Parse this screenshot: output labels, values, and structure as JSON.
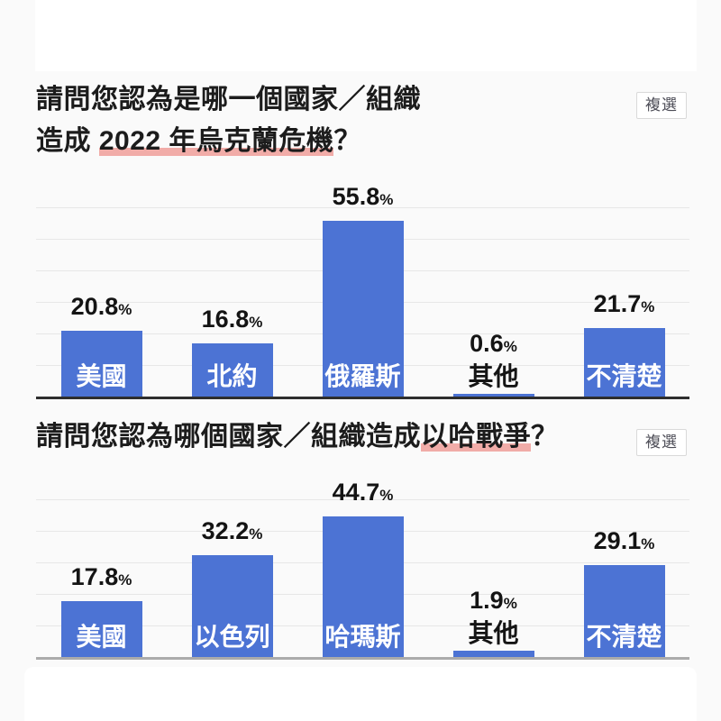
{
  "badge_label": "複選",
  "colors": {
    "bar": "#4C73D4",
    "underline": "#F1ACA8",
    "axis_chart1": "#2E2E2E",
    "axis_chart2": "#ABABAB",
    "background": "#FAFAFA",
    "card": "#FFFFFF",
    "gridline": "#E7E7E7"
  },
  "chart_data": [
    {
      "type": "bar",
      "title_line1": "請問您認為是哪一個國家／組織",
      "title_line2_prefix": "造成 ",
      "title_line2_underlined": "2022 年烏克蘭危機",
      "title_line2_suffix": "？",
      "badge": "複選",
      "categories": [
        "美國",
        "北約",
        "俄羅斯",
        "其他",
        "不清楚"
      ],
      "values": [
        20.8,
        16.8,
        55.8,
        0.6,
        21.7
      ],
      "unit": "%",
      "ylim": [
        0,
        60
      ],
      "gridline_step": 10,
      "grid": true,
      "legend": "none",
      "bar_color": "#4C73D4"
    },
    {
      "type": "bar",
      "title_prefix": "請問您認為哪個國家／組織造成",
      "title_underlined": "以哈戰爭",
      "title_suffix": "？",
      "badge": "複選",
      "categories": [
        "美國",
        "以色列",
        "哈瑪斯",
        "其他",
        "不清楚"
      ],
      "values": [
        17.8,
        32.2,
        44.7,
        1.9,
        29.1
      ],
      "unit": "%",
      "ylim": [
        0,
        50
      ],
      "gridline_step": 10,
      "grid": true,
      "legend": "none",
      "bar_color": "#4C73D4"
    }
  ]
}
